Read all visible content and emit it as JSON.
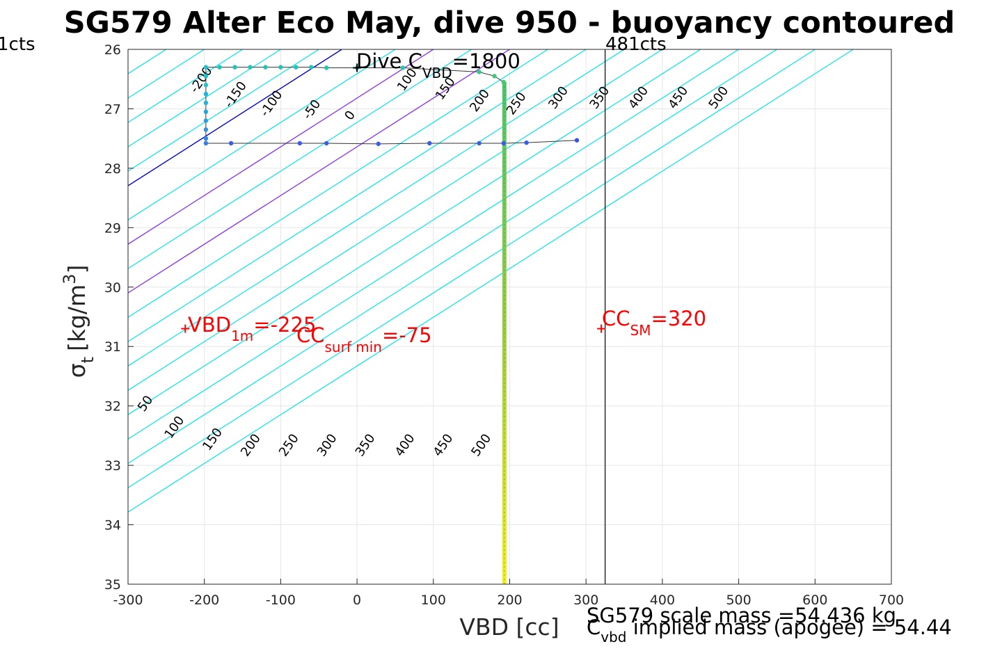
{
  "chart_data": {
    "type": "scatter",
    "title": "SG579 Alter Eco May, dive 950 - buoyancy contoured",
    "xlabel": "VBD [cc]",
    "ylabel_main": "σ",
    "ylabel_sub": "t",
    "ylabel_unit_pre": "[kg/m",
    "ylabel_unit_sup": "3",
    "ylabel_unit_post": "]",
    "xlim": [
      -300,
      700
    ],
    "ylim": [
      26,
      35
    ],
    "y_reversed": true,
    "grid": true,
    "x_ticks": [
      -300,
      -200,
      -100,
      0,
      100,
      200,
      300,
      400,
      500,
      600,
      700
    ],
    "x_tick_labels": [
      "-300",
      "-200",
      "-100",
      "0",
      "100",
      "200",
      "300",
      "400",
      "500",
      "600",
      "700"
    ],
    "y_ticks": [
      26,
      27,
      28,
      29,
      30,
      31,
      32,
      33,
      34,
      35
    ],
    "y_tick_labels": [
      "26",
      "27",
      "28",
      "29",
      "30",
      "31",
      "32",
      "33",
      "34",
      "35"
    ],
    "contours": {
      "slope_vbd_per_sigma": 122,
      "cyan_levels": [
        -250,
        -200,
        -150,
        -100,
        -50,
        50,
        100,
        150,
        200,
        250,
        300,
        350,
        400,
        450,
        500,
        550,
        600,
        650
      ],
      "colors": {
        "cyan": "#00e5ee",
        "zero": "#0000cc",
        "magenta": "#a020f0"
      },
      "magenta_levels": [
        100,
        200
      ],
      "zero_level": 0,
      "labels_top": [
        {
          "text": "-200",
          "vbd": -200,
          "sigma": 26.55
        },
        {
          "text": "-150",
          "vbd": -155,
          "sigma": 26.8
        },
        {
          "text": "-100",
          "vbd": -108,
          "sigma": 26.95
        },
        {
          "text": "-50",
          "vbd": -55,
          "sigma": 27.05
        },
        {
          "text": "0",
          "vbd": -5,
          "sigma": 27.15
        },
        {
          "text": "100",
          "vbd": 70,
          "sigma": 26.55
        },
        {
          "text": "150",
          "vbd": 120,
          "sigma": 26.7
        },
        {
          "text": "200",
          "vbd": 165,
          "sigma": 26.9
        },
        {
          "text": "250",
          "vbd": 213,
          "sigma": 26.95
        },
        {
          "text": "300",
          "vbd": 268,
          "sigma": 26.85
        },
        {
          "text": "350",
          "vbd": 322,
          "sigma": 26.85
        },
        {
          "text": "400",
          "vbd": 373,
          "sigma": 26.85
        },
        {
          "text": "450",
          "vbd": 425,
          "sigma": 26.85
        },
        {
          "text": "500",
          "vbd": 478,
          "sigma": 26.85
        }
      ],
      "labels_bottom": [
        {
          "text": "50",
          "vbd": -273,
          "sigma": 32.0
        },
        {
          "text": "100",
          "vbd": -235,
          "sigma": 32.4
        },
        {
          "text": "150",
          "vbd": -185,
          "sigma": 32.6
        },
        {
          "text": "200",
          "vbd": -135,
          "sigma": 32.7
        },
        {
          "text": "250",
          "vbd": -85,
          "sigma": 32.7
        },
        {
          "text": "300",
          "vbd": -35,
          "sigma": 32.7
        },
        {
          "text": "350",
          "vbd": 15,
          "sigma": 32.7
        },
        {
          "text": "400",
          "vbd": 67,
          "sigma": 32.7
        },
        {
          "text": "450",
          "vbd": 117,
          "sigma": 32.7
        },
        {
          "text": "500",
          "vbd": 167,
          "sigma": 32.7
        }
      ]
    },
    "dive_track": {
      "color": "#333333",
      "points": [
        {
          "vbd": -198,
          "sigma": 27.58,
          "color": "#3a7bea"
        },
        {
          "vbd": -165,
          "sigma": 27.58,
          "color": "#3a5ee8"
        },
        {
          "vbd": -75,
          "sigma": 27.58,
          "color": "#3a5ee8"
        },
        {
          "vbd": -40,
          "sigma": 27.58,
          "color": "#3a5ee8"
        },
        {
          "vbd": 28,
          "sigma": 27.59,
          "color": "#3a5ee8"
        },
        {
          "vbd": 95,
          "sigma": 27.58,
          "color": "#3a5ee8"
        },
        {
          "vbd": 160,
          "sigma": 27.58,
          "color": "#3a5ee8"
        },
        {
          "vbd": 192,
          "sigma": 27.58,
          "color": "#3a5ee8"
        },
        {
          "vbd": 222,
          "sigma": 27.57,
          "color": "#3a5ee8"
        },
        {
          "vbd": 288,
          "sigma": 27.53,
          "color": "#3a50e8"
        },
        {
          "vbd": -198,
          "sigma": 26.3,
          "color": "#1fc1cf"
        },
        {
          "vbd": -198,
          "sigma": 26.45,
          "color": "#1fc1cf"
        },
        {
          "vbd": -198,
          "sigma": 26.6,
          "color": "#1fc1cf"
        },
        {
          "vbd": -198,
          "sigma": 26.75,
          "color": "#1fb6d6"
        },
        {
          "vbd": -198,
          "sigma": 26.9,
          "color": "#1fb6d6"
        },
        {
          "vbd": -198,
          "sigma": 27.05,
          "color": "#22a8dc"
        },
        {
          "vbd": -198,
          "sigma": 27.2,
          "color": "#2a9de0"
        },
        {
          "vbd": -198,
          "sigma": 27.35,
          "color": "#2f92e2"
        },
        {
          "vbd": -198,
          "sigma": 27.5,
          "color": "#3388e6"
        },
        {
          "vbd": -180,
          "sigma": 26.3,
          "color": "#20c4b8"
        },
        {
          "vbd": -160,
          "sigma": 26.3,
          "color": "#20c4b8"
        },
        {
          "vbd": -140,
          "sigma": 26.3,
          "color": "#20c4b8"
        },
        {
          "vbd": -120,
          "sigma": 26.3,
          "color": "#20c4b8"
        },
        {
          "vbd": -100,
          "sigma": 26.3,
          "color": "#20c4b8"
        },
        {
          "vbd": -80,
          "sigma": 26.3,
          "color": "#20c4b8"
        },
        {
          "vbd": -60,
          "sigma": 26.3,
          "color": "#20c4b8"
        },
        {
          "vbd": -40,
          "sigma": 26.31,
          "color": "#24c6b0"
        },
        {
          "vbd": 0,
          "sigma": 26.31,
          "color": "#24c6b0"
        },
        {
          "vbd": 60,
          "sigma": 26.31,
          "color": "#28c8a6"
        },
        {
          "vbd": 160,
          "sigma": 26.38,
          "color": "#35c886"
        },
        {
          "vbd": 180,
          "sigma": 26.45,
          "color": "#3fc876"
        },
        {
          "vbd": 192,
          "sigma": 26.55,
          "color": "#48c86a"
        }
      ],
      "vertical_column": {
        "vbd": 193,
        "sigma_start": 26.55,
        "sigma_end": 35.0,
        "color_top": "#48c86a",
        "color_bottom": "#f2ee1a"
      }
    },
    "reference_line": {
      "vbd": 325,
      "label": "481cts"
    },
    "left_top_label": "1cts",
    "annotations": [
      {
        "id": "dive_c_vbd",
        "main": "Dive C",
        "sub": "VBD",
        "post": "=1800",
        "color": "#000000",
        "marker_vbd": 0,
        "marker_sigma": 26.31
      },
      {
        "id": "vbd_1m",
        "main": "VBD",
        "sub": "1m",
        "post": "=-225",
        "color": "#ff0000",
        "marker_vbd": -225,
        "marker_sigma": 30.7
      },
      {
        "id": "cc_surf_min",
        "main": "CC",
        "sub": "surf min",
        "post": "=-75",
        "color": "#ff0000"
      },
      {
        "id": "cc_sm",
        "main": "CC",
        "sub": "SM",
        "post": "=320",
        "color": "#ff0000",
        "marker_vbd": 320,
        "marker_sigma": 30.7
      }
    ],
    "footer": {
      "scale_mass": "SG579 scale mass =54.436 kg",
      "implied_main": "C",
      "implied_sub": "vbd",
      "implied_post": " implied mass (apogee) = 54.44"
    }
  }
}
